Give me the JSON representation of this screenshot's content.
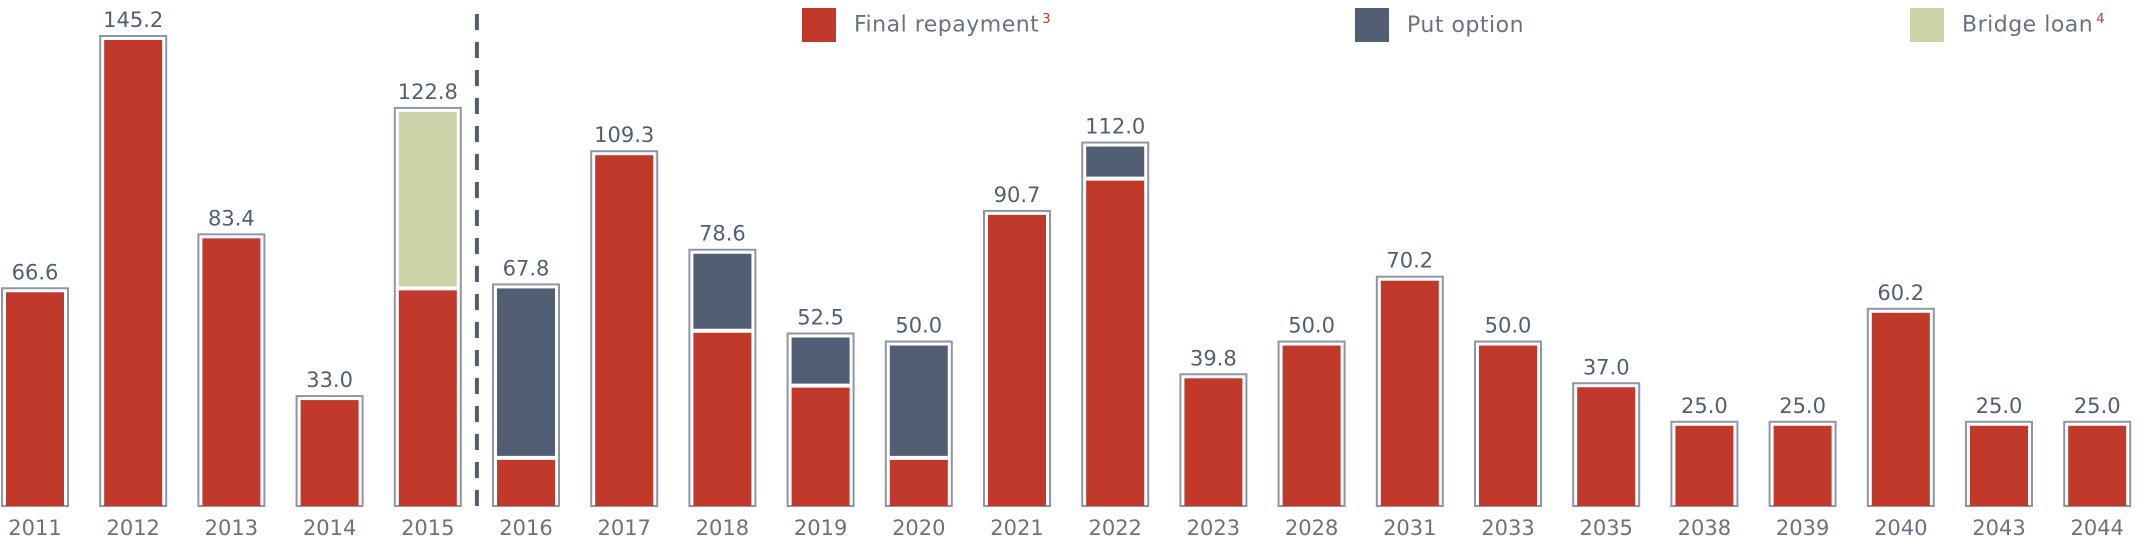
{
  "chart_data": {
    "type": "bar",
    "stacked": true,
    "categories": [
      "2011",
      "2012",
      "2013",
      "2014",
      "2015",
      "2016",
      "2017",
      "2018",
      "2019",
      "2020",
      "2021",
      "2022",
      "2023",
      "2028",
      "2031",
      "2033",
      "2035",
      "2038",
      "2039",
      "2040",
      "2043",
      "2044"
    ],
    "totals": [
      "66.6",
      "145.2",
      "83.4",
      "33.0",
      "122.8",
      "67.8",
      "109.3",
      "78.6",
      "52.5",
      "50.0",
      "90.7",
      "112.0",
      "39.8",
      "50.0",
      "70.2",
      "50.0",
      "37.0",
      "25.0",
      "25.0",
      "60.2",
      "25.0",
      "25.0"
    ],
    "series": [
      {
        "name": "Final repayment",
        "sup": "3",
        "color": "#c0392b",
        "values": [
          66.6,
          145.2,
          83.4,
          33.0,
          67.8,
          15.0,
          109.3,
          54.6,
          37.5,
          15.0,
          90.7,
          102.0,
          39.8,
          50.0,
          70.2,
          50.0,
          37.0,
          25.0,
          25.0,
          60.2,
          25.0,
          25.0
        ]
      },
      {
        "name": "Put option",
        "sup": "",
        "color": "#525e73",
        "values": [
          0,
          0,
          0,
          0,
          0,
          52.8,
          0,
          24.0,
          15.0,
          35.0,
          0,
          10.0,
          0,
          0,
          0,
          0,
          0,
          0,
          0,
          0,
          0,
          0
        ]
      },
      {
        "name": "Bridge loan",
        "sup": "4",
        "color": "#cbd3a8",
        "values": [
          0,
          0,
          0,
          0,
          55.0,
          0,
          0,
          0,
          0,
          0,
          0,
          0,
          0,
          0,
          0,
          0,
          0,
          0,
          0,
          0,
          0,
          0
        ]
      }
    ],
    "divider_after_category": "2015",
    "ylim": [
      0,
      150
    ],
    "legend_position": "top",
    "grid": false
  }
}
